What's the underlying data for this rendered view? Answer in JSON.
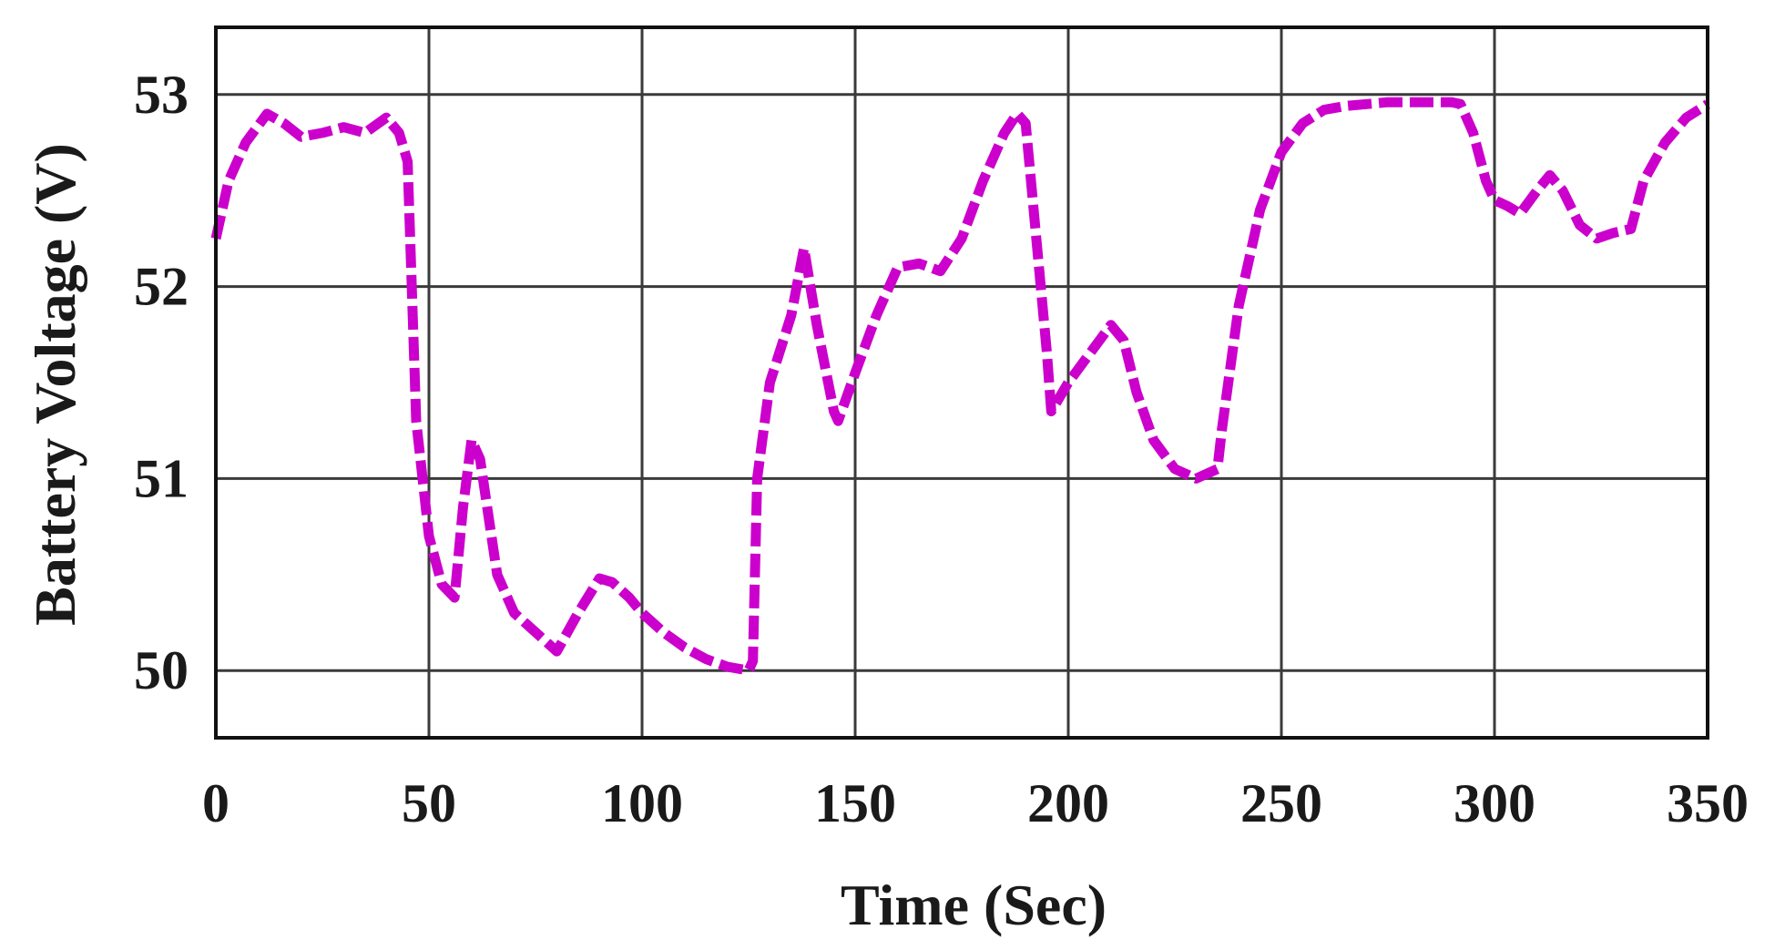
{
  "chart_data": {
    "type": "line",
    "xlabel": "Time (Sec)",
    "ylabel": "Battery Voltage (V)",
    "xlim": [
      0,
      350
    ],
    "ylim": [
      49.65,
      53.35
    ],
    "xticks": [
      0,
      50,
      100,
      150,
      200,
      250,
      300,
      350
    ],
    "yticks": [
      50,
      51,
      52,
      53
    ],
    "grid": true,
    "series": [
      {
        "color": "#cc00cc",
        "x": [
          0,
          3,
          7,
          12,
          16,
          20,
          25,
          30,
          35,
          40,
          43,
          45,
          47,
          50,
          53,
          56,
          58,
          60,
          62,
          64,
          66,
          70,
          75,
          80,
          85,
          90,
          93,
          97,
          100,
          105,
          110,
          115,
          120,
          125,
          126,
          127,
          130,
          135,
          138,
          141,
          145,
          146,
          150,
          155,
          160,
          165,
          170,
          175,
          180,
          185,
          188,
          190,
          195,
          196,
          200,
          205,
          210,
          213,
          216,
          220,
          225,
          230,
          235,
          236,
          240,
          245,
          250,
          255,
          260,
          265,
          270,
          275,
          280,
          285,
          290,
          292,
          295,
          298,
          300,
          303,
          306,
          310,
          313,
          316,
          320,
          324,
          328,
          332,
          335,
          340,
          345,
          350
        ],
        "y": [
          52.25,
          52.55,
          52.75,
          52.9,
          52.85,
          52.78,
          52.8,
          52.83,
          52.8,
          52.88,
          52.8,
          52.65,
          51.3,
          50.7,
          50.45,
          50.38,
          50.85,
          51.2,
          51.1,
          50.8,
          50.5,
          50.3,
          50.2,
          50.1,
          50.3,
          50.48,
          50.46,
          50.38,
          50.3,
          50.2,
          50.12,
          50.06,
          50.02,
          50.0,
          50.05,
          51.0,
          51.5,
          51.85,
          52.2,
          51.8,
          51.35,
          51.3,
          51.55,
          51.85,
          52.1,
          52.12,
          52.08,
          52.25,
          52.55,
          52.8,
          52.9,
          52.85,
          51.65,
          51.35,
          51.5,
          51.65,
          51.8,
          51.72,
          51.45,
          51.2,
          51.05,
          51.0,
          51.05,
          51.25,
          51.9,
          52.4,
          52.7,
          52.85,
          52.92,
          52.94,
          52.95,
          52.96,
          52.96,
          52.96,
          52.96,
          52.95,
          52.8,
          52.55,
          52.45,
          52.42,
          52.38,
          52.5,
          52.58,
          52.5,
          52.32,
          52.25,
          52.28,
          52.3,
          52.55,
          52.75,
          52.88,
          52.95
        ]
      }
    ]
  }
}
